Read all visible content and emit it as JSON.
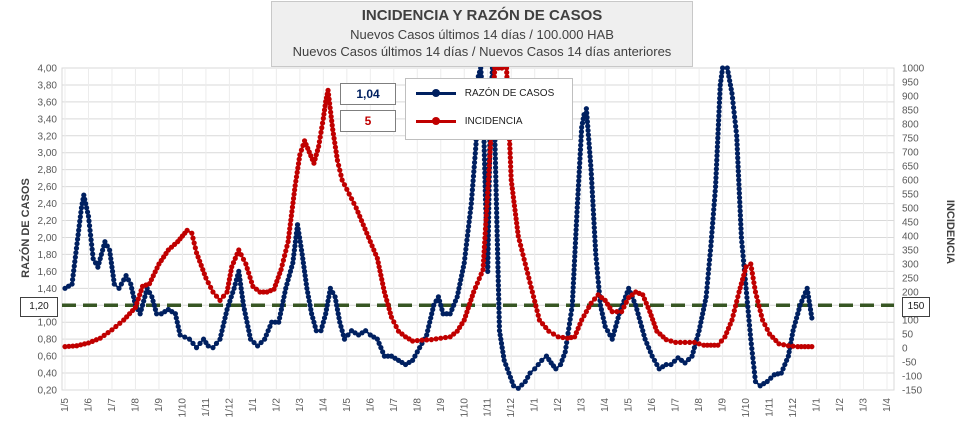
{
  "title": {
    "main": "INCIDENCIA Y RAZÓN DE CASOS",
    "line1": "Nuevos Casos últimos 14 días / 100.000  HAB",
    "line2": "Nuevos Casos últimos 14 días / Nuevos Casos 14 días anteriores"
  },
  "legend": {
    "ratio_label": "RAZÓN DE CASOS",
    "incidence_label": "INCIDENCIA"
  },
  "current_values": {
    "ratio": "1,04",
    "incidence": "5"
  },
  "reference_labels": {
    "left": "1,20",
    "right": "150"
  },
  "colors": {
    "ratio": "#002060",
    "incidence": "#c00000",
    "reference": "#375623",
    "grid": "#d9d9d9"
  },
  "chart_data": {
    "type": "line",
    "title": "INCIDENCIA Y RAZÓN DE CASOS",
    "ylabel": "RAZÓN DE CASOS",
    "y2label": "INCIDENCIA",
    "ylim": [
      0.2,
      4.0
    ],
    "y2lim": [
      -150,
      1000
    ],
    "yticks": [
      "0,20",
      "0,40",
      "0,60",
      "0,80",
      "1,00",
      "1,20",
      "1,40",
      "1,60",
      "1,80",
      "2,00",
      "2,20",
      "2,40",
      "2,60",
      "2,80",
      "3,00",
      "3,20",
      "3,40",
      "3,60",
      "3,80",
      "4,00"
    ],
    "y2ticks": [
      "-150",
      "-100",
      "-50",
      "0",
      "50",
      "100",
      "150",
      "200",
      "250",
      "300",
      "350",
      "400",
      "450",
      "500",
      "550",
      "600",
      "650",
      "700",
      "750",
      "800",
      "850",
      "900",
      "950",
      "1000"
    ],
    "xticks": [
      "1/5",
      "1/6",
      "1/7",
      "1/8",
      "1/9",
      "1/10",
      "1/11",
      "1/12",
      "1/1",
      "1/2",
      "1/3",
      "1/4",
      "1/5",
      "1/6",
      "1/7",
      "1/8",
      "1/9",
      "1/10",
      "1/11",
      "1/12",
      "1/1",
      "1/2",
      "1/3",
      "1/4",
      "1/5",
      "1/6",
      "1/7",
      "1/8",
      "1/9",
      "1/10",
      "1/11",
      "1/12",
      "1/1",
      "1/2",
      "1/3",
      "1/4"
    ],
    "reference_line": {
      "axis": "left",
      "value": 1.2,
      "style": "dashed"
    },
    "grid": true,
    "series": [
      {
        "name": "RAZÓN DE CASOS",
        "axis": "left",
        "color": "#002060",
        "points": [
          [
            0,
            1.4
          ],
          [
            0.3,
            1.45
          ],
          [
            0.7,
            2.35
          ],
          [
            0.8,
            2.5
          ],
          [
            1.0,
            2.25
          ],
          [
            1.2,
            1.75
          ],
          [
            1.4,
            1.65
          ],
          [
            1.7,
            1.95
          ],
          [
            1.9,
            1.85
          ],
          [
            2.1,
            1.45
          ],
          [
            2.3,
            1.4
          ],
          [
            2.6,
            1.55
          ],
          [
            2.8,
            1.45
          ],
          [
            3.0,
            1.2
          ],
          [
            3.2,
            1.1
          ],
          [
            3.5,
            1.4
          ],
          [
            3.7,
            1.3
          ],
          [
            3.9,
            1.1
          ],
          [
            4.1,
            1.1
          ],
          [
            4.4,
            1.15
          ],
          [
            4.7,
            1.1
          ],
          [
            4.9,
            0.85
          ],
          [
            5.3,
            0.8
          ],
          [
            5.6,
            0.7
          ],
          [
            5.9,
            0.8
          ],
          [
            6.1,
            0.72
          ],
          [
            6.3,
            0.7
          ],
          [
            6.6,
            0.8
          ],
          [
            6.9,
            1.15
          ],
          [
            7.2,
            1.4
          ],
          [
            7.4,
            1.6
          ],
          [
            7.6,
            1.2
          ],
          [
            7.9,
            0.8
          ],
          [
            8.2,
            0.72
          ],
          [
            8.5,
            0.8
          ],
          [
            8.8,
            1.0
          ],
          [
            9.1,
            1.0
          ],
          [
            9.4,
            1.4
          ],
          [
            9.7,
            1.7
          ],
          [
            9.9,
            2.15
          ],
          [
            10.1,
            1.8
          ],
          [
            10.3,
            1.4
          ],
          [
            10.5,
            1.1
          ],
          [
            10.7,
            0.9
          ],
          [
            10.9,
            0.9
          ],
          [
            11.1,
            1.1
          ],
          [
            11.3,
            1.4
          ],
          [
            11.5,
            1.3
          ],
          [
            11.7,
            1.0
          ],
          [
            11.9,
            0.8
          ],
          [
            12.2,
            0.9
          ],
          [
            12.5,
            0.85
          ],
          [
            12.8,
            0.9
          ],
          [
            13.0,
            0.85
          ],
          [
            13.3,
            0.8
          ],
          [
            13.6,
            0.6
          ],
          [
            13.9,
            0.6
          ],
          [
            14.2,
            0.55
          ],
          [
            14.5,
            0.5
          ],
          [
            14.8,
            0.55
          ],
          [
            15.1,
            0.7
          ],
          [
            15.4,
            0.85
          ],
          [
            15.7,
            1.2
          ],
          [
            15.9,
            1.3
          ],
          [
            16.1,
            1.1
          ],
          [
            16.4,
            1.1
          ],
          [
            16.7,
            1.3
          ],
          [
            17.0,
            1.7
          ],
          [
            17.3,
            2.4
          ],
          [
            17.5,
            3.1
          ],
          [
            17.6,
            3.9
          ],
          [
            17.7,
            4.0
          ],
          [
            17.8,
            3.6
          ],
          [
            17.9,
            2.5
          ],
          [
            18.0,
            1.6
          ],
          [
            18.1,
            3.3
          ],
          [
            18.2,
            4.0
          ],
          [
            18.3,
            3.2
          ],
          [
            18.5,
            0.9
          ],
          [
            18.7,
            0.55
          ],
          [
            18.9,
            0.4
          ],
          [
            19.1,
            0.25
          ],
          [
            19.3,
            0.22
          ],
          [
            19.6,
            0.3
          ],
          [
            19.8,
            0.4
          ],
          [
            20.0,
            0.45
          ],
          [
            20.3,
            0.55
          ],
          [
            20.5,
            0.6
          ],
          [
            20.7,
            0.52
          ],
          [
            20.9,
            0.45
          ],
          [
            21.1,
            0.5
          ],
          [
            21.3,
            0.65
          ],
          [
            21.6,
            1.2
          ],
          [
            21.8,
            2.3
          ],
          [
            22.0,
            3.3
          ],
          [
            22.1,
            3.45
          ],
          [
            22.2,
            3.52
          ],
          [
            22.4,
            2.8
          ],
          [
            22.6,
            1.8
          ],
          [
            22.8,
            1.2
          ],
          [
            23.0,
            0.95
          ],
          [
            23.3,
            0.8
          ],
          [
            23.6,
            1.1
          ],
          [
            24.0,
            1.4
          ],
          [
            24.3,
            1.2
          ],
          [
            24.5,
            1.0
          ],
          [
            24.7,
            0.8
          ],
          [
            25.0,
            0.6
          ],
          [
            25.3,
            0.45
          ],
          [
            25.6,
            0.5
          ],
          [
            25.8,
            0.5
          ],
          [
            26.1,
            0.58
          ],
          [
            26.4,
            0.52
          ],
          [
            26.7,
            0.6
          ],
          [
            27.0,
            0.9
          ],
          [
            27.3,
            1.3
          ],
          [
            27.5,
            1.9
          ],
          [
            27.7,
            2.6
          ],
          [
            27.9,
            3.8
          ],
          [
            28.0,
            4.0
          ],
          [
            28.2,
            4.0
          ],
          [
            28.4,
            3.7
          ],
          [
            28.6,
            3.2
          ],
          [
            28.8,
            2.0
          ],
          [
            29.0,
            1.4
          ],
          [
            29.2,
            0.8
          ],
          [
            29.4,
            0.3
          ],
          [
            29.6,
            0.25
          ],
          [
            29.9,
            0.3
          ],
          [
            30.2,
            0.38
          ],
          [
            30.5,
            0.4
          ],
          [
            30.8,
            0.6
          ],
          [
            31.0,
            0.9
          ],
          [
            31.3,
            1.2
          ],
          [
            31.6,
            1.4
          ],
          [
            31.8,
            1.05
          ]
        ]
      },
      {
        "name": "INCIDENCIA",
        "axis": "right",
        "color": "#c00000",
        "points": [
          [
            0,
            5
          ],
          [
            0.5,
            8
          ],
          [
            1.0,
            18
          ],
          [
            1.5,
            35
          ],
          [
            2.0,
            65
          ],
          [
            2.5,
            100
          ],
          [
            3.0,
            145
          ],
          [
            3.3,
            220
          ],
          [
            3.6,
            230
          ],
          [
            4.0,
            300
          ],
          [
            4.4,
            350
          ],
          [
            4.8,
            380
          ],
          [
            5.0,
            400
          ],
          [
            5.2,
            420
          ],
          [
            5.4,
            410
          ],
          [
            5.6,
            340
          ],
          [
            6.0,
            250
          ],
          [
            6.3,
            200
          ],
          [
            6.6,
            170
          ],
          [
            6.9,
            200
          ],
          [
            7.1,
            290
          ],
          [
            7.4,
            350
          ],
          [
            7.7,
            300
          ],
          [
            8.0,
            220
          ],
          [
            8.3,
            200
          ],
          [
            8.6,
            200
          ],
          [
            8.9,
            210
          ],
          [
            9.2,
            280
          ],
          [
            9.5,
            380
          ],
          [
            9.8,
            580
          ],
          [
            10.0,
            690
          ],
          [
            10.2,
            740
          ],
          [
            10.4,
            700
          ],
          [
            10.6,
            660
          ],
          [
            10.8,
            720
          ],
          [
            11.0,
            820
          ],
          [
            11.1,
            880
          ],
          [
            11.2,
            920
          ],
          [
            11.4,
            780
          ],
          [
            11.6,
            670
          ],
          [
            11.8,
            600
          ],
          [
            12.1,
            550
          ],
          [
            12.4,
            500
          ],
          [
            12.7,
            440
          ],
          [
            13.0,
            380
          ],
          [
            13.3,
            320
          ],
          [
            13.6,
            200
          ],
          [
            13.9,
            110
          ],
          [
            14.2,
            60
          ],
          [
            14.5,
            40
          ],
          [
            14.8,
            25
          ],
          [
            15.2,
            28
          ],
          [
            15.6,
            30
          ],
          [
            16.0,
            35
          ],
          [
            16.4,
            40
          ],
          [
            16.7,
            60
          ],
          [
            17.0,
            100
          ],
          [
            17.4,
            200
          ],
          [
            17.8,
            280
          ],
          [
            18.1,
            700
          ],
          [
            18.3,
            1000
          ],
          [
            18.6,
            1000
          ],
          [
            18.8,
            1000
          ],
          [
            19.0,
            600
          ],
          [
            19.3,
            400
          ],
          [
            19.6,
            300
          ],
          [
            19.9,
            200
          ],
          [
            20.2,
            100
          ],
          [
            20.6,
            60
          ],
          [
            21.0,
            40
          ],
          [
            21.4,
            35
          ],
          [
            21.7,
            40
          ],
          [
            22.0,
            100
          ],
          [
            22.4,
            160
          ],
          [
            22.7,
            190
          ],
          [
            23.0,
            170
          ],
          [
            23.3,
            130
          ],
          [
            23.7,
            130
          ],
          [
            24.0,
            180
          ],
          [
            24.3,
            200
          ],
          [
            24.6,
            190
          ],
          [
            24.9,
            130
          ],
          [
            25.2,
            60
          ],
          [
            25.6,
            30
          ],
          [
            26.0,
            20
          ],
          [
            26.4,
            20
          ],
          [
            26.8,
            20
          ],
          [
            27.2,
            10
          ],
          [
            27.5,
            10
          ],
          [
            27.8,
            10
          ],
          [
            28.1,
            40
          ],
          [
            28.4,
            100
          ],
          [
            28.7,
            200
          ],
          [
            29.0,
            290
          ],
          [
            29.2,
            300
          ],
          [
            29.4,
            200
          ],
          [
            29.7,
            100
          ],
          [
            30.0,
            50
          ],
          [
            30.4,
            15
          ],
          [
            30.8,
            8
          ],
          [
            31.2,
            5
          ],
          [
            31.5,
            5
          ],
          [
            31.8,
            5
          ]
        ]
      }
    ]
  }
}
